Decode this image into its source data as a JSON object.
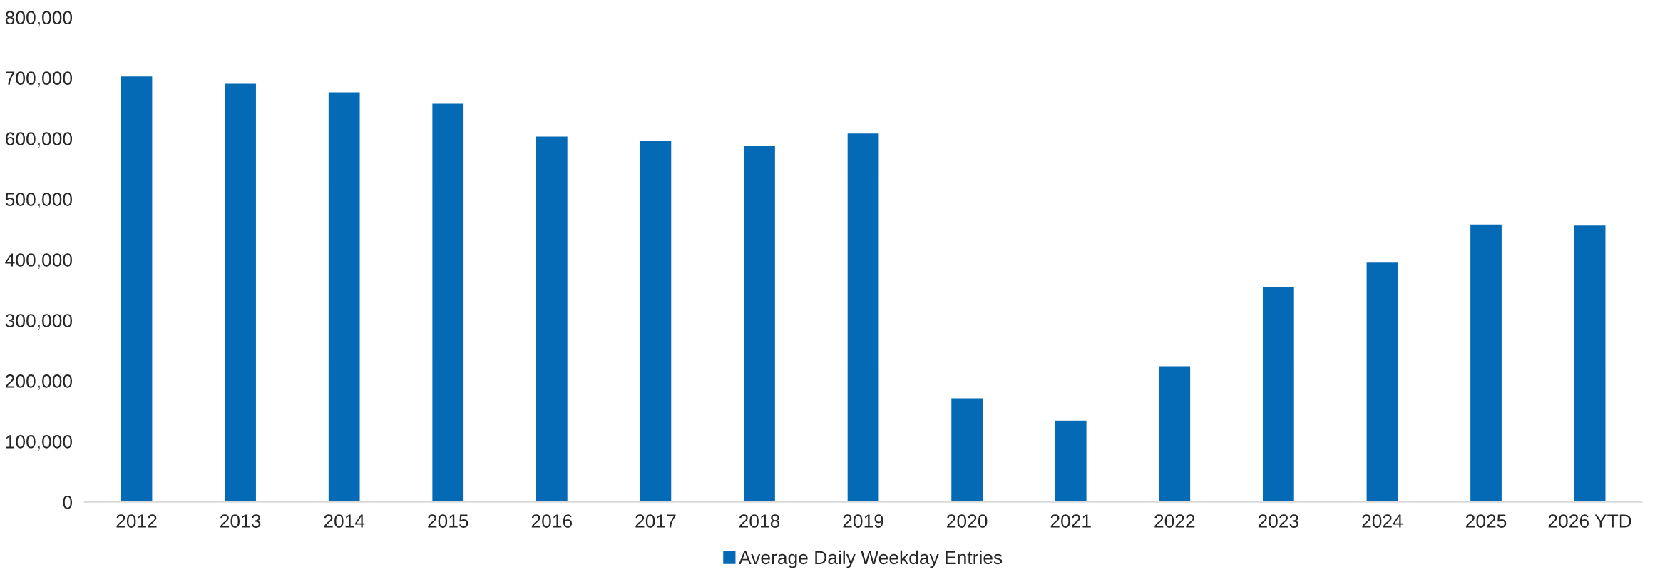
{
  "chart_data": {
    "type": "bar",
    "categories": [
      "2012",
      "2013",
      "2014",
      "2015",
      "2016",
      "2017",
      "2018",
      "2019",
      "2020",
      "2021",
      "2022",
      "2023",
      "2024",
      "2025",
      "2026 YTD"
    ],
    "series": [
      {
        "name": "Average Daily Weekday Entries",
        "color": "#046ab5",
        "values": [
          703000,
          691000,
          677000,
          658000,
          604000,
          597000,
          588000,
          609000,
          172000,
          135000,
          225000,
          356000,
          396000,
          459000,
          457000
        ]
      }
    ],
    "ylim": [
      0,
      800000
    ],
    "yticks": [
      {
        "value": 0,
        "label": "0"
      },
      {
        "value": 100000,
        "label": "100,000"
      },
      {
        "value": 200000,
        "label": "200,000"
      },
      {
        "value": 300000,
        "label": "300,000"
      },
      {
        "value": 400000,
        "label": "400,000"
      },
      {
        "value": 500000,
        "label": "500,000"
      },
      {
        "value": 600000,
        "label": "600,000"
      },
      {
        "value": 700000,
        "label": "700,000"
      },
      {
        "value": 800000,
        "label": "800,000"
      }
    ],
    "grid": false,
    "legend": "bottom"
  }
}
